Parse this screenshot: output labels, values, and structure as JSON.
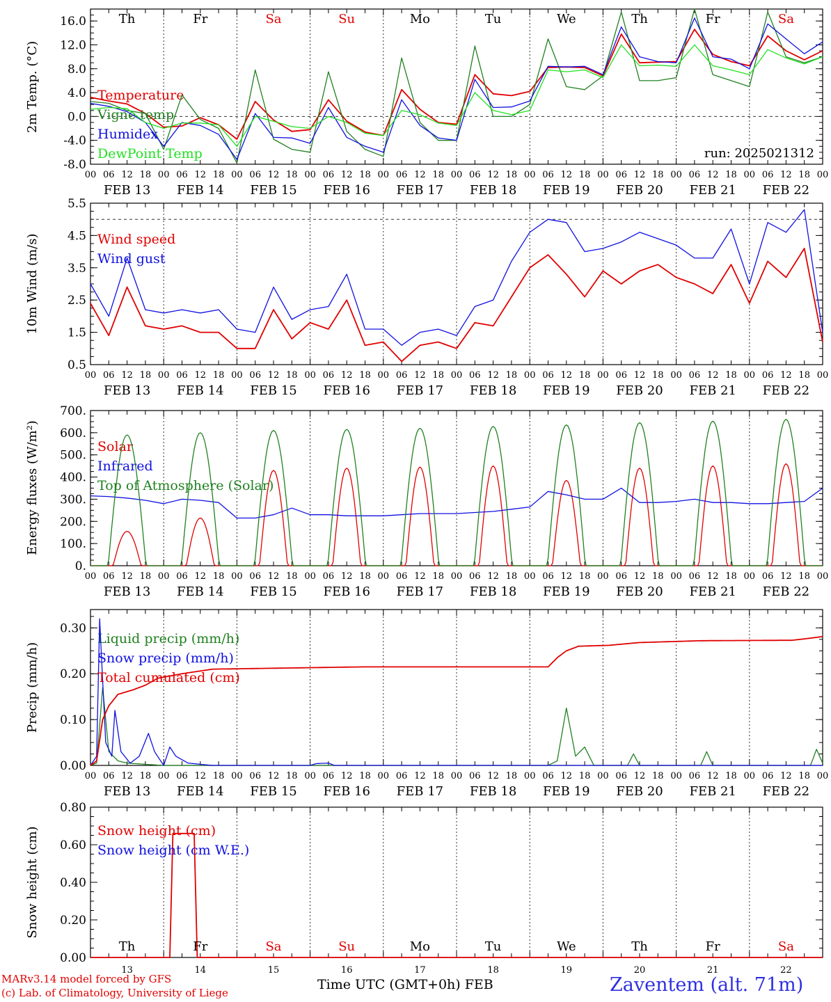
{
  "meteogram": {
    "run_label": "run: 2025021312",
    "day_names": [
      "Th",
      "Fr",
      "Sa",
      "Su",
      "Mo",
      "Tu",
      "We",
      "Th",
      "Fr",
      "Sa"
    ],
    "day_name_colors": [
      "#000000",
      "#000000",
      "#e00000",
      "#e00000",
      "#000000",
      "#000000",
      "#000000",
      "#000000",
      "#000000",
      "#e00000"
    ],
    "hour_ticks": [
      "00",
      "06",
      "12",
      "18"
    ],
    "date_labels": [
      "FEB 13",
      "FEB 14",
      "FEB 15",
      "FEB 16",
      "FEB 17",
      "FEB 18",
      "FEB 19",
      "FEB 20",
      "FEB 21",
      "FEB 22"
    ],
    "bottom_days": [
      "13",
      "14",
      "15",
      "16",
      "17",
      "18",
      "19",
      "20",
      "21",
      "22"
    ],
    "xlabel": "Time UTC (GMT+0h)",
    "xlabel_month": "FEB",
    "credit_line1": "MARv3.14 model forced by GFS",
    "credit_line2": "(c) Lab. of Climatology, University of Liege",
    "station": "Zaventem (alt. 71m)",
    "colors": {
      "red": "#e00000",
      "green": "#208020",
      "blue": "#1010e0",
      "light_green": "#20e020",
      "station": "#3030e0"
    }
  },
  "chart_data": [
    {
      "type": "line",
      "ylabel": "2m Temp. (°C)",
      "ylim": [
        -8,
        18
      ],
      "yticks": [
        "-8.0",
        "-4.0",
        "0.0",
        "4.0",
        "8.0",
        "12.0",
        "16.0"
      ],
      "x_hours": [
        0,
        6,
        12,
        18,
        24,
        30,
        36,
        42,
        48,
        54,
        60,
        66,
        72,
        78,
        84,
        90,
        96,
        102,
        108,
        114,
        120,
        126,
        132,
        138,
        144,
        150,
        156,
        162,
        168,
        174,
        180,
        186,
        192,
        198,
        204,
        210,
        216,
        222,
        228,
        234,
        240
      ],
      "series": [
        {
          "name": "Temperature",
          "color": "red",
          "values": [
            3.2,
            2.6,
            2.1,
            0.5,
            -1.8,
            -1.6,
            -0.2,
            -1.4,
            -3.8,
            2.5,
            -0.6,
            -2.5,
            -2.2,
            2.8,
            -0.8,
            -2.6,
            -3.2,
            4.5,
            1.2,
            -1.0,
            -1.3,
            7.0,
            3.8,
            3.5,
            4.2,
            8.2,
            8.3,
            8.2,
            6.8,
            13.8,
            9.0,
            9.1,
            9.2,
            14.6,
            10.4,
            9.2,
            8.5,
            13.5,
            11.0,
            9.5,
            11.0
          ]
        },
        {
          "name": "Vigne temp",
          "color": "green",
          "values": [
            2.5,
            2.2,
            1.0,
            0.5,
            -5.5,
            3.6,
            -0.5,
            -2.0,
            -7.8,
            7.8,
            -3.8,
            -5.5,
            -6.0,
            7.5,
            -2.5,
            -5.5,
            -6.7,
            9.8,
            -1.0,
            -4.0,
            -4.0,
            11.8,
            0.0,
            0.0,
            2.0,
            13.0,
            5.0,
            4.5,
            6.8,
            17.5,
            6.0,
            6.0,
            6.5,
            18.0,
            7.0,
            6.0,
            5.0,
            17.5,
            10.0,
            9.0,
            10.0
          ]
        },
        {
          "name": "Humidex",
          "color": "blue",
          "values": [
            2.2,
            1.7,
            0.8,
            -1.0,
            -5.0,
            -1.0,
            -1.5,
            -3.0,
            -7.2,
            0.5,
            -3.5,
            -3.6,
            -4.5,
            1.5,
            -3.5,
            -5.0,
            -6.0,
            2.8,
            -1.5,
            -3.6,
            -4.0,
            6.2,
            1.5,
            1.6,
            2.6,
            8.4,
            8.3,
            8.4,
            7.0,
            15.0,
            10.0,
            9.2,
            9.0,
            16.5,
            10.0,
            9.6,
            8.0,
            15.5,
            13.0,
            10.5,
            12.5
          ]
        },
        {
          "name": "DewPoint Temp",
          "color": "light_green",
          "values": [
            1.2,
            1.5,
            1.3,
            -1.0,
            -2.0,
            -1.1,
            -1.1,
            -1.4,
            -5.0,
            0.0,
            -0.8,
            -1.7,
            -2.0,
            0.0,
            -1.0,
            -2.8,
            -3.2,
            1.0,
            0.3,
            -1.1,
            -1.5,
            4.0,
            1.0,
            0.3,
            1.0,
            7.8,
            7.5,
            7.8,
            6.5,
            12.0,
            8.5,
            8.6,
            8.4,
            12.0,
            8.5,
            7.8,
            7.0,
            11.2,
            9.8,
            8.8,
            10.0
          ]
        }
      ],
      "reference_line": 0
    },
    {
      "type": "line",
      "ylabel": "10m Wind (m/s)",
      "ylim": [
        0.5,
        5.5
      ],
      "yticks": [
        "0.5",
        "1.5",
        "2.5",
        "3.5",
        "4.5",
        "5.5"
      ],
      "x_hours": [
        0,
        6,
        12,
        18,
        24,
        30,
        36,
        42,
        48,
        54,
        60,
        66,
        72,
        78,
        84,
        90,
        96,
        102,
        108,
        114,
        120,
        126,
        132,
        138,
        144,
        150,
        156,
        162,
        168,
        174,
        180,
        186,
        192,
        198,
        204,
        210,
        216,
        222,
        228,
        234,
        240
      ],
      "series": [
        {
          "name": "Wind speed",
          "color": "red",
          "values": [
            2.4,
            1.4,
            2.9,
            1.7,
            1.6,
            1.7,
            1.5,
            1.5,
            1.0,
            1.0,
            2.2,
            1.3,
            1.8,
            1.6,
            2.5,
            1.1,
            1.2,
            0.6,
            1.1,
            1.2,
            1.0,
            1.8,
            1.7,
            2.6,
            3.5,
            3.9,
            3.3,
            2.6,
            3.4,
            3.0,
            3.4,
            3.6,
            3.2,
            3.0,
            2.7,
            3.6,
            2.4,
            3.7,
            3.2,
            4.1,
            1.2
          ]
        },
        {
          "name": "Wind gust",
          "color": "blue",
          "values": [
            3.0,
            2.0,
            3.8,
            2.2,
            2.1,
            2.2,
            2.1,
            2.2,
            1.6,
            1.5,
            2.9,
            1.9,
            2.2,
            2.3,
            3.3,
            1.6,
            1.6,
            1.1,
            1.5,
            1.6,
            1.4,
            2.3,
            2.5,
            3.7,
            4.6,
            5.0,
            4.9,
            4.0,
            4.1,
            4.3,
            4.6,
            4.4,
            4.2,
            3.8,
            3.8,
            4.7,
            3.0,
            4.9,
            4.6,
            5.3,
            1.5
          ]
        }
      ],
      "reference_line": 5.0
    },
    {
      "type": "line",
      "ylabel": "Energy fluxes (W/m²)",
      "ylim": [
        0,
        700
      ],
      "yticks": [
        "0.",
        "100.",
        "200.",
        "300.",
        "400.",
        "500.",
        "600.",
        "700."
      ],
      "x_hours": [
        0,
        6,
        12,
        18,
        24,
        30,
        36,
        42,
        48,
        54,
        60,
        66,
        72,
        78,
        84,
        90,
        96,
        102,
        108,
        114,
        120,
        126,
        132,
        138,
        144,
        150,
        156,
        162,
        168,
        174,
        180,
        186,
        192,
        198,
        204,
        210,
        216,
        222,
        228,
        234,
        240
      ],
      "series": [
        {
          "name": "Solar",
          "color": "red",
          "peak_hour": 12,
          "daily_peaks": [
            155,
            215,
            430,
            440,
            445,
            450,
            385,
            440,
            450,
            460
          ]
        },
        {
          "name": "Infrared",
          "color": "blue",
          "values": [
            315,
            312,
            305,
            295,
            280,
            300,
            295,
            285,
            215,
            215,
            230,
            260,
            230,
            230,
            225,
            225,
            225,
            230,
            235,
            235,
            235,
            240,
            245,
            255,
            265,
            335,
            320,
            300,
            300,
            350,
            285,
            285,
            290,
            300,
            285,
            285,
            280,
            280,
            285,
            290,
            350
          ]
        },
        {
          "name": "Top of Atmosphere (Solar)",
          "color": "green",
          "peak_hour": 12,
          "daily_peaks": [
            590,
            600,
            610,
            615,
            620,
            628,
            635,
            645,
            652,
            660
          ]
        }
      ]
    },
    {
      "type": "line",
      "ylabel": "Precip (mm/h)",
      "ylim": [
        0,
        0.34
      ],
      "yticks": [
        "0.00",
        "0.10",
        "0.20",
        "0.30"
      ],
      "series": [
        {
          "name": "Liquid precip (mm/h)",
          "color": "green",
          "points": [
            [
              0,
              0
            ],
            [
              2,
              0.005
            ],
            [
              4,
              0.17
            ],
            [
              6,
              0.03
            ],
            [
              9,
              0.01
            ],
            [
              12,
              0.005
            ],
            [
              24,
              0
            ],
            [
              150,
              0
            ],
            [
              153,
              0.01
            ],
            [
              156,
              0.125
            ],
            [
              159,
              0.02
            ],
            [
              162,
              0.04
            ],
            [
              165,
              0
            ],
            [
              176,
              0
            ],
            [
              178,
              0.025
            ],
            [
              180,
              0
            ],
            [
              200,
              0
            ],
            [
              202,
              0.03
            ],
            [
              204,
              0
            ],
            [
              236,
              0
            ],
            [
              238,
              0.035
            ],
            [
              240,
              0.005
            ]
          ]
        },
        {
          "name": "Snow precip (mm/h)",
          "color": "blue",
          "points": [
            [
              0,
              0
            ],
            [
              2,
              0.02
            ],
            [
              3,
              0.32
            ],
            [
              5,
              0.05
            ],
            [
              7,
              0.02
            ],
            [
              8,
              0.12
            ],
            [
              10,
              0.03
            ],
            [
              13,
              0.005
            ],
            [
              16,
              0.02
            ],
            [
              19,
              0.07
            ],
            [
              21,
              0.03
            ],
            [
              24,
              0
            ],
            [
              26,
              0.04
            ],
            [
              28,
              0.02
            ],
            [
              32,
              0.005
            ],
            [
              40,
              0
            ],
            [
              72,
              0
            ],
            [
              74,
              0.004
            ],
            [
              78,
              0.005
            ],
            [
              80,
              0
            ],
            [
              240,
              0
            ]
          ]
        },
        {
          "name": "Total cumulated (cm)",
          "color": "red",
          "points": [
            [
              0,
              0
            ],
            [
              2,
              0.01
            ],
            [
              4,
              0.1
            ],
            [
              6,
              0.13
            ],
            [
              9,
              0.155
            ],
            [
              14,
              0.165
            ],
            [
              18,
              0.175
            ],
            [
              22,
              0.19
            ],
            [
              30,
              0.2
            ],
            [
              40,
              0.21
            ],
            [
              60,
              0.212
            ],
            [
              90,
              0.215
            ],
            [
              150,
              0.215
            ],
            [
              153,
              0.235
            ],
            [
              156,
              0.25
            ],
            [
              160,
              0.26
            ],
            [
              170,
              0.262
            ],
            [
              180,
              0.268
            ],
            [
              200,
              0.272
            ],
            [
              230,
              0.273
            ],
            [
              234,
              0.276
            ],
            [
              240,
              0.281
            ]
          ]
        }
      ]
    },
    {
      "type": "line",
      "ylabel": "Snow height (cm)",
      "ylim": [
        0,
        0.8
      ],
      "yticks": [
        "0.00",
        "0.20",
        "0.40",
        "0.60",
        "0.80"
      ],
      "series": [
        {
          "name": "Snow height (cm)",
          "color": "red",
          "points": [
            [
              0,
              0
            ],
            [
              26,
              0
            ],
            [
              27,
              0.66
            ],
            [
              34,
              0.66
            ],
            [
              35,
              0
            ],
            [
              240,
              0
            ]
          ]
        },
        {
          "name": "Snow height (cm W.E.)",
          "color": "blue",
          "points": []
        }
      ]
    }
  ]
}
